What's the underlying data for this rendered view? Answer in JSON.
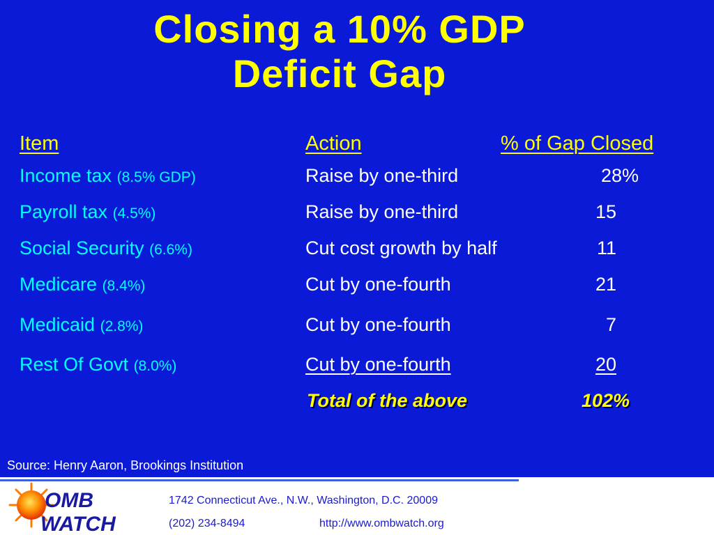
{
  "title_line1": "Closing a 10% GDP",
  "title_line2": "Deficit Gap",
  "headers": {
    "item": "Item",
    "action": "Action",
    "pct": "% of Gap Closed"
  },
  "rows": [
    {
      "item": "Income tax",
      "sub": "(8.5% GDP)",
      "action": "Raise by one-third",
      "pct": "28%"
    },
    {
      "item": "Payroll tax",
      "sub": "(4.5%)",
      "action": "Raise by one-third",
      "pct": "15"
    },
    {
      "item": "Social Security",
      "sub": "(6.6%)",
      "action": "Cut cost growth by half",
      "pct": "11"
    },
    {
      "item": "Medicare",
      "sub": "(8.4%)",
      "action": "Cut by one-fourth",
      "pct": "21"
    },
    {
      "item": "Medicaid",
      "sub": "(2.8%)",
      "action": "Cut by one-fourth",
      "pct": "7"
    },
    {
      "item": "Rest Of Govt",
      "sub": "(8.0%)",
      "action": "Cut by one-fourth",
      "pct": "20"
    }
  ],
  "total": {
    "label": "Total of the above",
    "value": "102%"
  },
  "source": "Source: Henry Aaron, Brookings Institution",
  "footer": {
    "logo_text_top": "OMB",
    "logo_text_bottom": "WATCH",
    "address": "1742 Connecticut Ave., N.W., Washington, D.C. 20009",
    "phone": "(202) 234-8494",
    "url": "http://www.ombwatch.org"
  },
  "colors": {
    "background": "#0a1ad6",
    "title": "#ffff00",
    "item": "#00ffff",
    "text": "#ffffff",
    "footer_text": "#1a1ad0"
  }
}
